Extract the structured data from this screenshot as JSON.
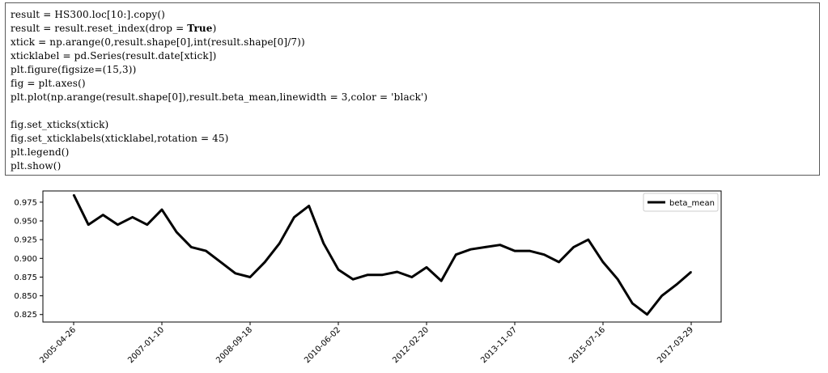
{
  "code": {
    "lines": [
      "result = HS300.loc[10:].copy()",
      "result = result.reset_index(drop = True)",
      "xtick = np.arange(0,result.shape[0],int(result.shape[0]/7))",
      "xticklabel = pd.Series(result.date[xtick])",
      "plt.figure(figsize=(15,3))",
      "fig = plt.axes()",
      "plt.plot(np.arange(result.shape[0]),result.beta_mean,linewidth = 3,color = 'black')",
      "",
      "fig.set_xticks(xtick)",
      "fig.set_xticklabels(xticklabel,rotation = 45)",
      "plt.legend()",
      "plt.show()"
    ],
    "bold_keyword": "True"
  },
  "chart_data": {
    "type": "line",
    "x": [
      "2005-04-26",
      "2005-08",
      "2005-11",
      "2006-03",
      "2006-07",
      "2006-11",
      "2007-01-10",
      "2007-05",
      "2007-09",
      "2007-12",
      "2008-04",
      "2008-07",
      "2008-09-18",
      "2009-01",
      "2009-05",
      "2009-09",
      "2010-01",
      "2010-04",
      "2010-06-02",
      "2010-10",
      "2011-02",
      "2011-06",
      "2011-10",
      "2012-01",
      "2012-02-20",
      "2012-06",
      "2012-10",
      "2013-02",
      "2013-06",
      "2013-09",
      "2013-11-07",
      "2014-03",
      "2014-07",
      "2014-11",
      "2015-03",
      "2015-06",
      "2015-07-16",
      "2015-11",
      "2016-03",
      "2016-07",
      "2016-11",
      "2017-02",
      "2017-03-29"
    ],
    "series": [
      {
        "name": "beta_mean",
        "values": [
          0.985,
          0.945,
          0.958,
          0.945,
          0.955,
          0.945,
          0.965,
          0.935,
          0.915,
          0.91,
          0.895,
          0.88,
          0.875,
          0.895,
          0.92,
          0.955,
          0.97,
          0.92,
          0.885,
          0.872,
          0.878,
          0.878,
          0.882,
          0.875,
          0.888,
          0.87,
          0.905,
          0.912,
          0.915,
          0.918,
          0.91,
          0.91,
          0.905,
          0.895,
          0.915,
          0.925,
          0.895,
          0.872,
          0.84,
          0.825,
          0.85,
          0.865,
          0.882
        ]
      }
    ],
    "xticks": [
      "2005-04-26",
      "2007-01-10",
      "2008-09-18",
      "2010-06-02",
      "2012-02-20",
      "2013-11-07",
      "2015-07-16",
      "2017-03-29"
    ],
    "yticks": [
      "0.825",
      "0.850",
      "0.875",
      "0.900",
      "0.925",
      "0.950",
      "0.975"
    ],
    "ylim": [
      0.815,
      0.99
    ],
    "title": "",
    "xlabel": "",
    "ylabel": "",
    "grid": false,
    "legend_position": "top-right",
    "line_color": "#000000"
  }
}
